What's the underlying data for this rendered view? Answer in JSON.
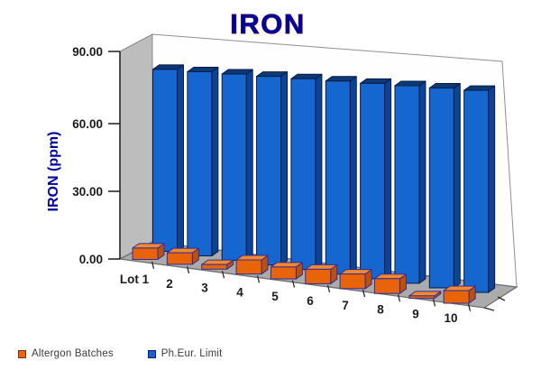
{
  "title": "IRON",
  "y_axis": {
    "title": "IRON (ppm)",
    "ticks": [
      "90.00",
      "60.00",
      "30.00",
      "0.00"
    ],
    "max": 90
  },
  "x_axis": {
    "labels": [
      "Lot 1",
      "2",
      "3",
      "4",
      "5",
      "6",
      "7",
      "8",
      "9",
      "10"
    ]
  },
  "legend": {
    "items": [
      {
        "label": "Altergon Batches",
        "color": "#e8650c"
      },
      {
        "label": "Ph.Eur. Limit",
        "color": "#1e5fd0"
      }
    ],
    "position": "bottom-left"
  },
  "colors": {
    "title_text": "#0000a0",
    "axis_text": "#1b1b1b",
    "back_wall": "#fefefe",
    "left_wall": "#bdbdbd",
    "floor": "#ababab",
    "batch": {
      "front": "#e96309",
      "side": "#bf4f06",
      "top": "#f4882b",
      "outline": "#2e2e9e"
    },
    "limit": {
      "front": "#1566cf",
      "side": "#0d4396",
      "top": "#0c3a78",
      "outline": "#0a1c42"
    }
  },
  "chart_data": {
    "type": "bar",
    "view": "3d-perspective",
    "title": "IRON",
    "xlabel": "",
    "ylabel": "IRON (ppm)",
    "ylim": [
      0,
      90
    ],
    "ytick_step": 30,
    "grid": false,
    "legend_position": "bottom-left",
    "categories": [
      "Lot 1",
      "2",
      "3",
      "4",
      "5",
      "6",
      "7",
      "8",
      "9",
      "10"
    ],
    "series": [
      {
        "name": "Altergon Batches",
        "color": "#e96309",
        "values": [
          5,
          5,
          2,
          6,
          5,
          6,
          6,
          6,
          1,
          5
        ]
      },
      {
        "name": "Ph.Eur. Limit",
        "color": "#1566cf",
        "values": [
          80,
          80,
          80,
          80,
          80,
          80,
          80,
          80,
          80,
          80
        ]
      }
    ]
  }
}
